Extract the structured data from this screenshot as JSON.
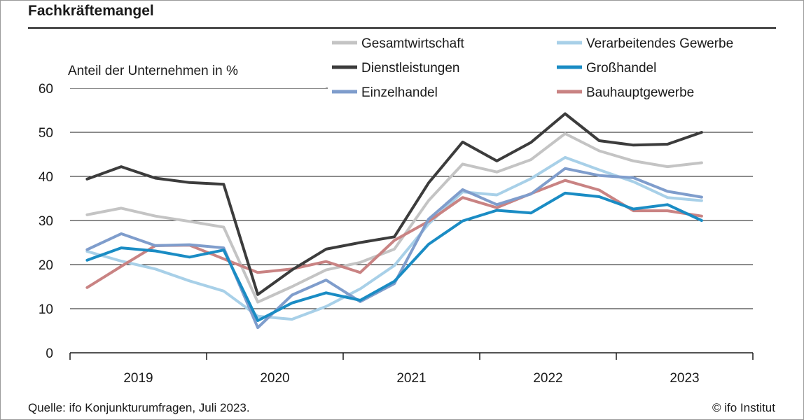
{
  "title": "Fachkräftemangel",
  "source": "Quelle: ifo Konjunkturumfragen, Juli 2023.",
  "copyright": "© ifo Institut",
  "chart_data": {
    "type": "line",
    "ylabel": "Anteil der Unternehmen in %",
    "ylim": [
      0,
      60
    ],
    "yticks": [
      0,
      10,
      20,
      30,
      40,
      50,
      60
    ],
    "grid": "horizontal",
    "legend_position": "top-right",
    "year_labels": [
      "2019",
      "2020",
      "2021",
      "2022",
      "2023"
    ],
    "x": [
      "2019-Q1",
      "2019-Q2",
      "2019-Q3",
      "2019-Q4",
      "2020-Q1",
      "2020-Q2",
      "2020-Q3",
      "2020-Q4",
      "2021-Q1",
      "2021-Q2",
      "2021-Q3",
      "2021-Q4",
      "2022-Q1",
      "2022-Q2",
      "2022-Q3",
      "2022-Q4",
      "2023-Q1",
      "2023-Q2",
      "2023-Q3"
    ],
    "series": [
      {
        "name": "Gesamtwirtschaft",
        "color": "#c4c4c4",
        "values": [
          31.3,
          32.8,
          31.0,
          29.8,
          28.5,
          11.5,
          15.0,
          18.8,
          20.5,
          23.5,
          34.5,
          42.8,
          41.0,
          43.8,
          49.7,
          45.8,
          43.5,
          42.2,
          43.1
        ]
      },
      {
        "name": "Verarbeitendes Gewerbe",
        "color": "#a8d0e8",
        "values": [
          23.0,
          20.8,
          19.0,
          16.3,
          14.0,
          8.3,
          7.6,
          10.5,
          14.5,
          19.8,
          29.2,
          36.5,
          35.8,
          39.5,
          44.3,
          41.5,
          38.8,
          35.2,
          34.5
        ]
      },
      {
        "name": "Dienstleistungen",
        "color": "#3c3c3c",
        "values": [
          39.4,
          42.2,
          39.6,
          38.6,
          38.2,
          13.2,
          18.8,
          23.5,
          25.0,
          26.3,
          38.5,
          47.8,
          43.5,
          47.7,
          54.2,
          48.1,
          47.1,
          47.3,
          50.0
        ]
      },
      {
        "name": "Großhandel",
        "color": "#1a8cc4",
        "values": [
          21.0,
          23.8,
          23.1,
          21.7,
          23.3,
          7.3,
          11.3,
          13.6,
          11.9,
          16.2,
          24.6,
          29.9,
          32.3,
          31.7,
          36.2,
          35.4,
          32.6,
          33.6,
          30.0
        ]
      },
      {
        "name": "Einzelhandel",
        "color": "#7f9dcc",
        "values": [
          23.4,
          27.0,
          24.3,
          24.5,
          23.8,
          5.7,
          13.1,
          16.5,
          11.6,
          15.7,
          30.3,
          37.0,
          33.6,
          36.0,
          41.8,
          40.2,
          39.7,
          36.6,
          35.3
        ]
      },
      {
        "name": "Bauhauptgewerbe",
        "color": "#c98383",
        "values": [
          14.8,
          19.6,
          24.3,
          24.4,
          21.3,
          18.2,
          19.0,
          20.7,
          18.2,
          25.5,
          29.8,
          35.2,
          32.9,
          36.1,
          39.1,
          36.9,
          32.2,
          32.2,
          31.0
        ]
      }
    ]
  }
}
